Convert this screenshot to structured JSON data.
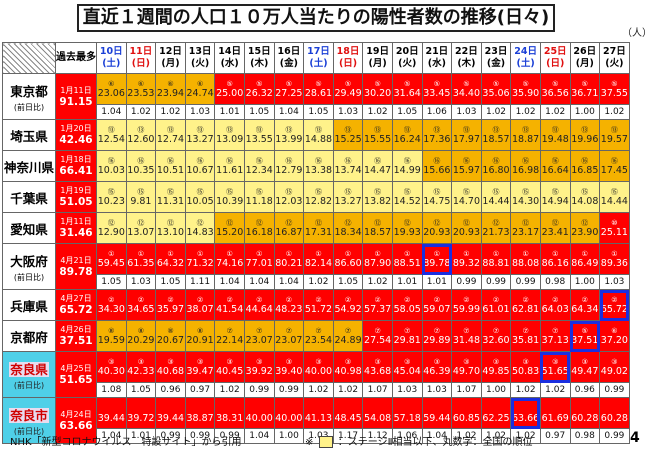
{
  "title": "直近１週間の人口１０万人当たりの陽性者数の推移(日々)",
  "unit": "（人）",
  "best_header": "過去最多",
  "ratio_label": "(前日比)",
  "days": [
    {
      "d": "10日",
      "w": "(土)",
      "t": "sat"
    },
    {
      "d": "11日",
      "w": "(日)",
      "t": "sun"
    },
    {
      "d": "12日",
      "w": "(月)",
      "t": ""
    },
    {
      "d": "13日",
      "w": "(火)",
      "t": ""
    },
    {
      "d": "14日",
      "w": "(水)",
      "t": ""
    },
    {
      "d": "15日",
      "w": "(木)",
      "t": ""
    },
    {
      "d": "16日",
      "w": "(金)",
      "t": ""
    },
    {
      "d": "17日",
      "w": "(土)",
      "t": "sat"
    },
    {
      "d": "18日",
      "w": "(日)",
      "t": "sun"
    },
    {
      "d": "19日",
      "w": "(月)",
      "t": ""
    },
    {
      "d": "20日",
      "w": "(火)",
      "t": ""
    },
    {
      "d": "21日",
      "w": "(水)",
      "t": ""
    },
    {
      "d": "22日",
      "w": "(木)",
      "t": ""
    },
    {
      "d": "23日",
      "w": "(金)",
      "t": ""
    },
    {
      "d": "24日",
      "w": "(土)",
      "t": "sat"
    },
    {
      "d": "25日",
      "w": "(日)",
      "t": "sun"
    },
    {
      "d": "26日",
      "w": "(月)",
      "t": ""
    },
    {
      "d": "27日",
      "w": "(火)",
      "t": ""
    }
  ],
  "prefs": [
    {
      "name": "東京都",
      "sub": "(前日比)",
      "nara": false,
      "best_date": "1月11日",
      "best_val": "91.15",
      "rank": [
        "⑥",
        "⑥",
        "⑥",
        "⑥",
        "⑤",
        "⑤",
        "⑤",
        "⑤",
        "⑤",
        "⑤",
        "⑤",
        "⑤",
        "⑤",
        "⑤",
        "⑤",
        "⑤",
        "⑤",
        "⑤"
      ],
      "vals": [
        "23.06",
        "23.53",
        "23.94",
        "24.74",
        "25.00",
        "26.32",
        "27.25",
        "28.61",
        "29.49",
        "30.20",
        "31.64",
        "33.45",
        "34.40",
        "35.06",
        "35.90",
        "36.56",
        "36.71",
        "37.55"
      ],
      "cls": "YYYYRRRRRRRRRRRRRR",
      "blue": "",
      "ratio": [
        "1.04",
        "1.02",
        "1.02",
        "1.03",
        "1.01",
        "1.05",
        "1.04",
        "1.05",
        "1.03",
        "1.02",
        "1.05",
        "1.06",
        "1.03",
        "1.02",
        "1.02",
        "1.02",
        "1.00",
        "1.02"
      ]
    },
    {
      "name": "埼玉県",
      "sub": "",
      "nara": false,
      "best_date": "1月20日",
      "best_val": "42.46",
      "rank": [
        "⑬",
        "⑬",
        "⑬",
        "⑬",
        "⑬",
        "⑬",
        "⑬",
        "⑬",
        "⑬",
        "⑬",
        "⑬",
        "⑬",
        "⑬",
        "⑬",
        "⑬",
        "⑬",
        "⑬",
        "⑬"
      ],
      "vals": [
        "12.54",
        "12.60",
        "12.74",
        "13.27",
        "13.09",
        "13.55",
        "13.99",
        "14.88",
        "15.25",
        "15.55",
        "16.24",
        "17.36",
        "17.97",
        "18.57",
        "18.87",
        "19.48",
        "19.96",
        "19.57"
      ],
      "cls": "LLLLLLLLYYYYYYYYYY",
      "blue": "",
      "ratio": null
    },
    {
      "name": "神奈川県",
      "sub": "",
      "nara": false,
      "best_date": "1月18日",
      "best_val": "66.41",
      "rank": [
        "⑯",
        "⑯",
        "⑯",
        "⑯",
        "⑯",
        "⑯",
        "⑯",
        "⑯",
        "⑯",
        "⑯",
        "⑯",
        "⑯",
        "⑯",
        "⑯",
        "⑯",
        "⑯",
        "⑯",
        "⑯"
      ],
      "vals": [
        "10.03",
        "10.35",
        "10.51",
        "10.67",
        "11.61",
        "12.34",
        "12.79",
        "13.38",
        "13.74",
        "14.47",
        "14.99",
        "15.66",
        "15.97",
        "16.80",
        "16.98",
        "16.64",
        "16.85",
        "17.45"
      ],
      "cls": "LLLLLLLLLLLYYYYYYY",
      "blue": "",
      "ratio": null
    },
    {
      "name": "千葉県",
      "sub": "",
      "nara": false,
      "best_date": "1月19日",
      "best_val": "51.05",
      "rank": [
        "⑮",
        "⑮",
        "⑮",
        "⑮",
        "⑮",
        "⑮",
        "⑮",
        "⑮",
        "⑮",
        "⑮",
        "⑮",
        "⑮",
        "⑮",
        "⑮",
        "⑮",
        "⑮",
        "⑮",
        "⑮"
      ],
      "vals": [
        "10.23",
        "9.81",
        "11.31",
        "10.05",
        "10.39",
        "11.18",
        "12.03",
        "12.82",
        "13.27",
        "13.82",
        "14.52",
        "14.75",
        "14.70",
        "14.44",
        "14.30",
        "14.94",
        "14.08",
        "14.44"
      ],
      "cls": "LLLLLLLLLLLLLLLLLL",
      "blue": "",
      "ratio": null
    },
    {
      "name": "愛知県",
      "sub": "",
      "nara": false,
      "best_date": "1月11日",
      "best_val": "31.46",
      "rank": [
        "⑫",
        "⑫",
        "⑫",
        "⑫",
        "⑫",
        "⑫",
        "⑫",
        "⑫",
        "⑫",
        "⑫",
        "⑫",
        "⑫",
        "⑫",
        "⑫",
        "⑫",
        "⑫",
        "⑫",
        "⑩"
      ],
      "vals": [
        "12.90",
        "13.07",
        "13.10",
        "14.83",
        "15.20",
        "16.18",
        "16.87",
        "17.31",
        "18.34",
        "18.57",
        "19.93",
        "20.93",
        "20.93",
        "21.73",
        "23.17",
        "23.41",
        "23.90",
        "25.11"
      ],
      "cls": "LLLLYYYYYYYYYYYYYR",
      "blue": "",
      "ratio": null
    },
    {
      "name": "大阪府",
      "sub": "(前日比)",
      "nara": false,
      "best_date": "4月21日",
      "best_val": "89.78",
      "rank": [
        "①",
        "①",
        "①",
        "①",
        "①",
        "①",
        "①",
        "①",
        "①",
        "①",
        "①",
        "①",
        "①",
        "①",
        "①",
        "①",
        "①",
        "①"
      ],
      "vals": [
        "59.45",
        "61.35",
        "64.32",
        "71.32",
        "74.16",
        "77.01",
        "80.21",
        "82.14",
        "86.60",
        "87.90",
        "88.51",
        "89.78",
        "89.32",
        "88.81",
        "88.08",
        "86.16",
        "86.49",
        "89.36"
      ],
      "cls": "RRRRRRRRRRRRRRRRRR",
      "blue": "11",
      "ratio": [
        "1.05",
        "1.03",
        "1.05",
        "1.11",
        "1.04",
        "1.04",
        "1.04",
        "1.02",
        "1.05",
        "1.02",
        "1.01",
        "1.01",
        "0.99",
        "0.99",
        "0.99",
        "0.98",
        "1.00",
        "1.03"
      ]
    },
    {
      "name": "兵庫県",
      "sub": "",
      "nara": false,
      "best_date": "4月27日",
      "best_val": "65.72",
      "rank": [
        "②",
        "②",
        "②",
        "②",
        "②",
        "②",
        "②",
        "②",
        "②",
        "②",
        "②",
        "②",
        "②",
        "②",
        "②",
        "②",
        "②",
        "②"
      ],
      "vals": [
        "34.30",
        "34.65",
        "35.97",
        "38.07",
        "41.54",
        "44.64",
        "48.23",
        "51.72",
        "54.92",
        "57.37",
        "58.05",
        "59.07",
        "59.99",
        "61.01",
        "62.81",
        "64.03",
        "64.34",
        "65.72"
      ],
      "cls": "RRRRRRRRRRRRRRRRRR",
      "blue": "17",
      "ratio": null
    },
    {
      "name": "京都府",
      "sub": "",
      "nara": false,
      "best_date": "4月26日",
      "best_val": "37.51",
      "rank": [
        "⑧",
        "⑧",
        "⑧",
        "⑧",
        "⑦",
        "⑦",
        "⑦",
        "⑦",
        "⑦",
        "⑦",
        "⑦",
        "⑦",
        "⑦",
        "⑦",
        "⑦",
        "⑦",
        "⑤",
        "⑥"
      ],
      "vals": [
        "19.59",
        "20.29",
        "20.67",
        "20.91",
        "22.14",
        "23.07",
        "23.07",
        "23.54",
        "24.89",
        "27.54",
        "29.81",
        "29.89",
        "31.48",
        "32.60",
        "35.81",
        "37.13",
        "37.51",
        "37.20"
      ],
      "cls": "YYYYYYYYYRRRRRRRRR",
      "blue": "16",
      "ratio": null
    },
    {
      "name": "奈良県",
      "sub": "(前日比)",
      "nara": true,
      "best_date": "4月25日",
      "best_val": "51.65",
      "rank": [
        "③",
        "③",
        "③",
        "③",
        "③",
        "③",
        "③",
        "③",
        "③",
        "③",
        "③",
        "③",
        "③",
        "③",
        "③",
        "③",
        "③",
        "③"
      ],
      "vals": [
        "40.30",
        "42.33",
        "40.68",
        "39.47",
        "40.45",
        "39.92",
        "39.40",
        "40.00",
        "40.98",
        "43.68",
        "45.04",
        "46.39",
        "49.70",
        "49.85",
        "50.83",
        "51.65",
        "49.47",
        "49.02"
      ],
      "cls": "RRRRRRRRRRRRRRRRRR",
      "blue": "15",
      "ratio": [
        "1.08",
        "1.05",
        "0.96",
        "0.97",
        "1.02",
        "0.99",
        "0.99",
        "1.02",
        "1.02",
        "1.07",
        "1.03",
        "1.03",
        "1.07",
        "1.00",
        "1.02",
        "1.02",
        "0.96",
        "0.99"
      ]
    },
    {
      "name": "奈良市",
      "sub": "(前日比)",
      "nara": true,
      "best_date": "4月24日",
      "best_val": "63.66",
      "rank": [
        "",
        "",
        "",
        "",
        "",
        "",
        "",
        "",
        "",
        "",
        "",
        "",
        "",
        "",
        "",
        "",
        "",
        ""
      ],
      "vals": [
        "39.44",
        "39.72",
        "39.44",
        "38.87",
        "38.31",
        "40.00",
        "40.00",
        "41.13",
        "48.45",
        "54.08",
        "57.18",
        "59.44",
        "60.85",
        "62.25",
        "63.66",
        "61.69",
        "60.28",
        "60.28"
      ],
      "cls": "RRRRRRRRRRRRRRRRRR",
      "blue": "14",
      "ratio": [
        "1.04",
        "1.01",
        "0.99",
        "0.99",
        "0.99",
        "1.04",
        "1.00",
        "1.03",
        "1.17",
        "1.12",
        "1.06",
        "1.04",
        "1.02",
        "1.02",
        "1.02",
        "0.97",
        "0.98",
        "0.99"
      ]
    }
  ],
  "footer_left": "NHK「新型コロナウイルス　特設サイト」から引用",
  "footer_note_prefix": "※",
  "footer_note": "：ステージⅡ相当以下、丸数字：全国の順位",
  "page_number": "4"
}
